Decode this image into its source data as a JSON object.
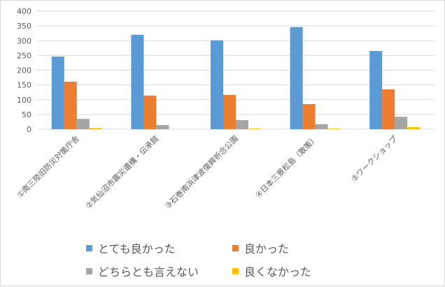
{
  "chart_data": {
    "type": "bar",
    "categories": [
      "①南三陸旧防災対策庁舎",
      "②気仙沼市震災遺構・伝承館",
      "③石巻南浜津波復興祈念公園",
      "④日本三景松島（散策）",
      "⑤ワークショップ"
    ],
    "series": [
      {
        "name": "とても良かった",
        "color": "#5b9bd5",
        "values": [
          246,
          320,
          301,
          346,
          265
        ]
      },
      {
        "name": "良かった",
        "color": "#ed7d31",
        "values": [
          161,
          114,
          116,
          85,
          135
        ]
      },
      {
        "name": "どちらとも言えない",
        "color": "#a5a5a5",
        "values": [
          35,
          14,
          31,
          17,
          42
        ]
      },
      {
        "name": "良くなかった",
        "color": "#ffc000",
        "values": [
          4,
          0,
          2,
          2,
          7
        ]
      }
    ],
    "yticks": [
      0,
      50,
      100,
      150,
      200,
      250,
      300,
      350,
      400
    ],
    "ylim": [
      0,
      400
    ],
    "grid": true,
    "legend_position": "bottom",
    "title": "",
    "xlabel": "",
    "ylabel": ""
  }
}
